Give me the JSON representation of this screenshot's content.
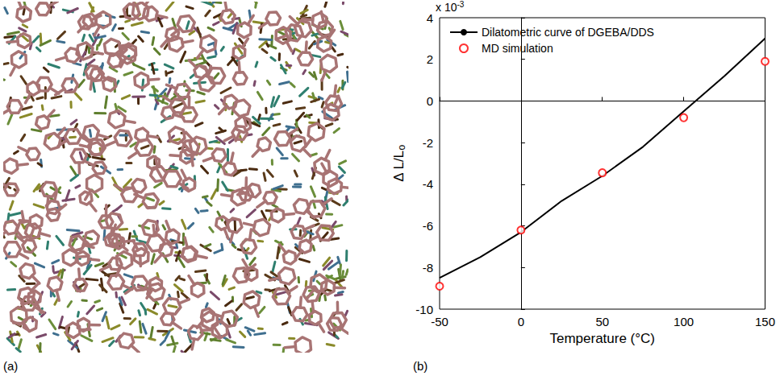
{
  "panels": {
    "a": {
      "label": "(a)"
    },
    "b": {
      "label": "(b)"
    }
  },
  "chart_data": {
    "type": "line",
    "xlabel": "Temperature (°C)",
    "ylabel": "Δ L/L",
    "ylabel_subscript": "o",
    "multiplier": "x 10",
    "multiplier_exponent": "-3",
    "xlim": [
      -50,
      150
    ],
    "xticks": [
      -50,
      0,
      50,
      100,
      150
    ],
    "ylim": [
      -10,
      4
    ],
    "yticks": [
      -10,
      -8,
      -6,
      -4,
      -2,
      0,
      2,
      4
    ],
    "grid": false,
    "legend": "upper left",
    "series": [
      {
        "name": "Dilatometric curve of DGEBA/DDS",
        "type": "line",
        "color": "#000000",
        "line_style": "solid",
        "x": [
          -50,
          -25,
          0,
          25,
          50,
          75,
          100,
          125,
          150
        ],
        "values": [
          -8.5,
          -7.5,
          -6.3,
          -4.8,
          -3.6,
          -2.2,
          -0.5,
          1.2,
          3.0
        ]
      },
      {
        "name": "MD simulation",
        "type": "scatter",
        "color": "#ff0000",
        "marker": "open_circle",
        "x": [
          -50,
          0,
          50,
          100,
          150
        ],
        "values": [
          -8.9,
          -6.2,
          -3.45,
          -0.8,
          1.9
        ]
      }
    ]
  }
}
